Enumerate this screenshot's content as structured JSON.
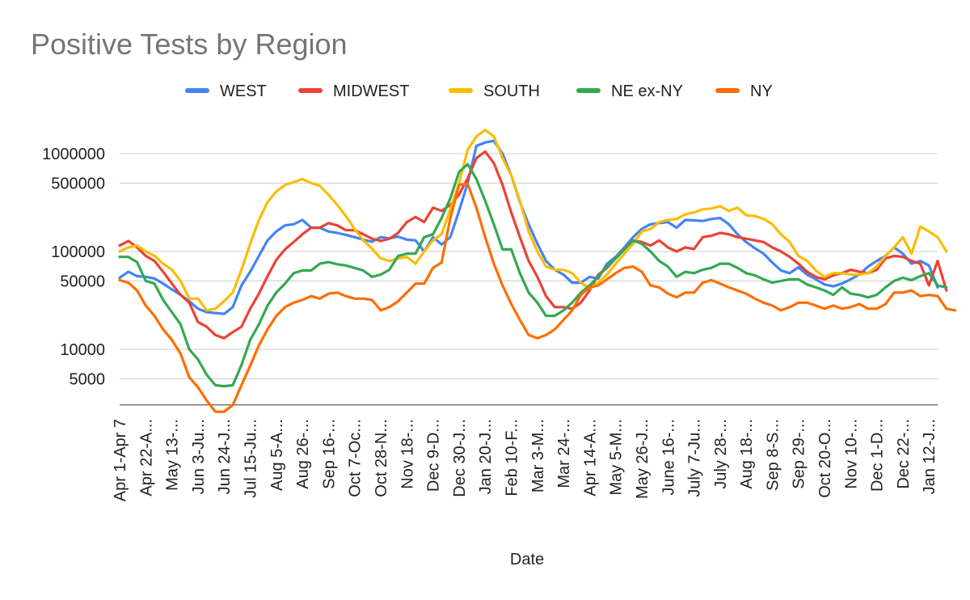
{
  "chart_data": {
    "type": "line",
    "title": "Positive Tests by Region",
    "xlabel": "Date",
    "ylabel": "",
    "y_scale": "log",
    "ylim": [
      2700,
      1900000
    ],
    "yticks": [
      5000,
      10000,
      50000,
      100000,
      500000,
      1000000
    ],
    "ytick_labels": [
      "5000",
      "10000",
      "50000",
      "100000",
      "500000",
      "1000000"
    ],
    "legend_position": "top",
    "grid": true,
    "x_labels": [
      {
        "label": "Apr 1-Apr 7",
        "index": 0
      },
      {
        "label": "Apr 22-A...",
        "index": 3
      },
      {
        "label": "May 13-...",
        "index": 6
      },
      {
        "label": "Jun 3-Ju...",
        "index": 9
      },
      {
        "label": "Jun 24-J...",
        "index": 12
      },
      {
        "label": "Jul 15-Ju...",
        "index": 15
      },
      {
        "label": "Aug 5-A...",
        "index": 18
      },
      {
        "label": "Aug 26-...",
        "index": 21
      },
      {
        "label": "Sep 16-...",
        "index": 24
      },
      {
        "label": "Oct 7-Oc...",
        "index": 27
      },
      {
        "label": "Oct 28-N...",
        "index": 30
      },
      {
        "label": "Nov 18-...",
        "index": 33
      },
      {
        "label": "Dec 9-D...",
        "index": 36
      },
      {
        "label": "Dec 30-J...",
        "index": 39
      },
      {
        "label": "Jan 20-J...",
        "index": 42
      },
      {
        "label": "Feb 10-F...",
        "index": 45
      },
      {
        "label": "Mar 3-M...",
        "index": 48
      },
      {
        "label": "Mar 24-...",
        "index": 51
      },
      {
        "label": "Apr 14-A...",
        "index": 54
      },
      {
        "label": "May 5-M...",
        "index": 57
      },
      {
        "label": "May 26-J...",
        "index": 60
      },
      {
        "label": "June 16-...",
        "index": 63
      },
      {
        "label": "July 7-Ju...",
        "index": 66
      },
      {
        "label": "July 28-...",
        "index": 69
      },
      {
        "label": "Aug 18-...",
        "index": 72
      },
      {
        "label": "Sep 8-S...",
        "index": 75
      },
      {
        "label": "Sep 29-...",
        "index": 78
      },
      {
        "label": "Oct 20-O...",
        "index": 81
      },
      {
        "label": "Nov 10-...",
        "index": 84
      },
      {
        "label": "Dec 1-D...",
        "index": 87
      },
      {
        "label": "Dec 22-...",
        "index": 90
      },
      {
        "label": "Jan 12-J...",
        "index": 93
      }
    ],
    "series": [
      {
        "name": "WEST",
        "color": "#4285F4",
        "values": [
          54000,
          62000,
          56000,
          55000,
          53000,
          47000,
          41000,
          36000,
          31000,
          26000,
          24000,
          23500,
          23000,
          27000,
          45000,
          62000,
          90000,
          130000,
          160000,
          185000,
          190000,
          210000,
          175000,
          175000,
          160000,
          155000,
          148000,
          140000,
          132000,
          126000,
          140000,
          136000,
          142000,
          132000,
          130000,
          100000,
          140000,
          118000,
          140000,
          260000,
          500000,
          1200000,
          1300000,
          1350000,
          1000000,
          600000,
          320000,
          190000,
          120000,
          80000,
          65000,
          58000,
          48000,
          48000,
          55000,
          53000,
          75000,
          88000,
          110000,
          140000,
          170000,
          190000,
          195000,
          200000,
          175000,
          210000,
          208000,
          205000,
          215000,
          220000,
          190000,
          150000,
          125000,
          108000,
          95000,
          77000,
          64000,
          60000,
          69000,
          58000,
          52000,
          46000,
          44000,
          47000,
          52000,
          58000,
          70000,
          80000,
          90000,
          110000,
          95000,
          75000,
          80000,
          72000,
          43000
        ]
      },
      {
        "name": "MIDWEST",
        "color": "#EA4335",
        "values": [
          115000,
          128000,
          110000,
          90000,
          80000,
          62000,
          47000,
          36000,
          30000,
          19000,
          17000,
          14000,
          13000,
          15000,
          17000,
          26000,
          37000,
          56000,
          82000,
          105000,
          125000,
          150000,
          175000,
          175000,
          195000,
          185000,
          165000,
          165000,
          150000,
          135000,
          128000,
          135000,
          155000,
          200000,
          225000,
          200000,
          280000,
          260000,
          300000,
          380000,
          560000,
          900000,
          1050000,
          800000,
          480000,
          250000,
          140000,
          80000,
          55000,
          35000,
          27000,
          27000,
          26000,
          30000,
          40000,
          58000,
          68000,
          85000,
          105000,
          130000,
          125000,
          115000,
          130000,
          110000,
          100000,
          110000,
          106000,
          140000,
          145000,
          155000,
          150000,
          140000,
          135000,
          130000,
          125000,
          110000,
          100000,
          88000,
          75000,
          62000,
          55000,
          52000,
          57000,
          60000,
          65000,
          62000,
          60000,
          65000,
          85000,
          90000,
          88000,
          80000,
          75000,
          45000,
          80000,
          40000
        ]
      },
      {
        "name": "SOUTH",
        "color": "#FBBC04",
        "values": [
          100000,
          110000,
          115000,
          100000,
          90000,
          75000,
          65000,
          50000,
          33000,
          33000,
          25000,
          26000,
          31000,
          38000,
          65000,
          120000,
          210000,
          320000,
          410000,
          480000,
          510000,
          550000,
          500000,
          470000,
          380000,
          300000,
          230000,
          170000,
          130000,
          107000,
          85000,
          80000,
          85000,
          88000,
          75000,
          100000,
          130000,
          150000,
          270000,
          500000,
          1100000,
          1500000,
          1750000,
          1500000,
          900000,
          600000,
          330000,
          160000,
          100000,
          70000,
          65000,
          65000,
          60000,
          48000,
          42000,
          48000,
          58000,
          75000,
          95000,
          120000,
          160000,
          170000,
          200000,
          210000,
          215000,
          240000,
          250000,
          270000,
          275000,
          290000,
          260000,
          280000,
          235000,
          230000,
          215000,
          190000,
          150000,
          125000,
          90000,
          80000,
          64000,
          55000,
          60000,
          60000,
          58000,
          58000,
          60000,
          70000,
          90000,
          110000,
          140000,
          95000,
          180000,
          160000,
          140000,
          100000
        ]
      },
      {
        "name": "NE ex-NY",
        "color": "#34A853",
        "values": [
          88000,
          88000,
          78000,
          50000,
          47000,
          32000,
          24000,
          18000,
          10000,
          7900,
          5500,
          4300,
          4200,
          4300,
          6900,
          12500,
          18000,
          28000,
          38000,
          47000,
          60000,
          64000,
          64000,
          75000,
          78000,
          74000,
          72000,
          68000,
          64000,
          55000,
          58000,
          65000,
          90000,
          95000,
          95000,
          140000,
          150000,
          220000,
          350000,
          650000,
          780000,
          550000,
          330000,
          190000,
          105000,
          105000,
          60000,
          38000,
          30000,
          22000,
          22000,
          25000,
          30000,
          38000,
          45000,
          55000,
          70000,
          85000,
          105000,
          130000,
          120000,
          100000,
          80000,
          70000,
          55000,
          62000,
          60000,
          65000,
          68000,
          75000,
          75000,
          68000,
          60000,
          57000,
          52000,
          48000,
          50000,
          52000,
          52000,
          46000,
          43000,
          40000,
          36000,
          43000,
          37000,
          36000,
          34000,
          36000,
          43000,
          50000,
          54000,
          51000,
          56000,
          60000,
          45000,
          43000
        ]
      },
      {
        "name": "NY",
        "color": "#FF6D01",
        "values": [
          51000,
          48000,
          40000,
          28000,
          22000,
          16000,
          12500,
          9000,
          5200,
          4100,
          3000,
          2300,
          2300,
          2700,
          4300,
          6800,
          11000,
          16000,
          22000,
          27000,
          30000,
          32000,
          35000,
          33000,
          37000,
          38000,
          35000,
          33000,
          33000,
          32000,
          25000,
          27000,
          31000,
          38000,
          47000,
          47000,
          68000,
          77000,
          220000,
          480000,
          490000,
          280000,
          140000,
          75000,
          45000,
          29000,
          20000,
          14000,
          13000,
          14000,
          16000,
          20000,
          25000,
          36000,
          43000,
          45000,
          52000,
          60000,
          68000,
          70000,
          62000,
          45000,
          43000,
          37000,
          34000,
          38000,
          38000,
          48000,
          51000,
          47000,
          43000,
          40000,
          37000,
          33000,
          30000,
          28000,
          25000,
          27000,
          30000,
          30000,
          28000,
          26000,
          28000,
          26000,
          27000,
          29000,
          26000,
          26000,
          29000,
          38000,
          38000,
          40000,
          35000,
          36000,
          35000,
          26000,
          25000
        ]
      }
    ]
  }
}
